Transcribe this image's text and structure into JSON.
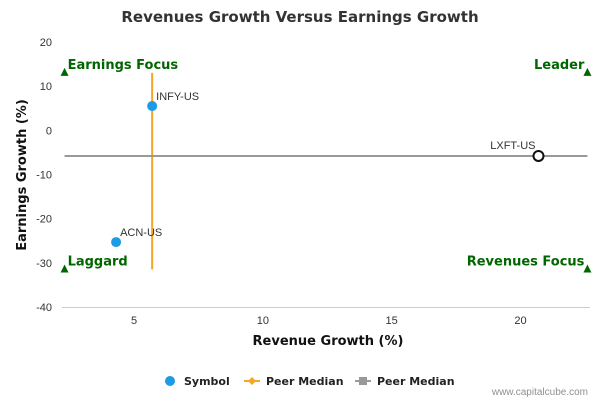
{
  "chart_data": {
    "type": "scatter",
    "title": "Revenues Growth Versus Earnings Growth",
    "xlabel": "Revenue Growth (%)",
    "ylabel": "Earnings Growth (%)",
    "xlim": [
      2.2,
      22.7
    ],
    "ylim": [
      -40,
      20
    ],
    "x_ticks": [
      5,
      10,
      15,
      20
    ],
    "y_ticks": [
      20,
      10,
      0,
      -10,
      -20,
      -30,
      -40
    ],
    "grid": false,
    "points": [
      {
        "label": "INFY-US",
        "x": 5.7,
        "y": 5.5,
        "style": "filled",
        "color": "#1e9be5"
      },
      {
        "label": "ACN-US",
        "x": 4.3,
        "y": -25.3,
        "style": "filled",
        "color": "#1e9be5"
      },
      {
        "label": "LXFT-US",
        "x": 20.7,
        "y": -5.8,
        "style": "hollow",
        "color": "#111111"
      }
    ],
    "peer_median_x": {
      "value": 5.7,
      "y_range": [
        -31.5,
        13
      ],
      "color": "#f5a623"
    },
    "peer_median_y": {
      "value": -5.8,
      "x_range": [
        2.3,
        22.6
      ],
      "color": "#999999"
    },
    "quadrants": [
      {
        "label": "Earnings Focus",
        "x": 2.3,
        "y": 13,
        "align": "left",
        "position": "above"
      },
      {
        "label": "Leader",
        "x": 22.6,
        "y": 13,
        "align": "right",
        "position": "above"
      },
      {
        "label": "Laggard",
        "x": 2.3,
        "y": -31.5,
        "align": "left",
        "position": "above"
      },
      {
        "label": "Revenues Focus",
        "x": 22.6,
        "y": -31.5,
        "align": "right",
        "position": "above"
      }
    ],
    "quadrant_color": "#006600",
    "legend": {
      "placement": "bottom",
      "items": [
        {
          "label": "Symbol",
          "marker": "circle",
          "color": "#1e9be5"
        },
        {
          "label": "Peer Median",
          "marker": "diamond-line",
          "color": "#f5a623"
        },
        {
          "label": "Peer Median",
          "marker": "square-line",
          "color": "#999999"
        }
      ]
    }
  },
  "credit": "www.capitalcube.com"
}
